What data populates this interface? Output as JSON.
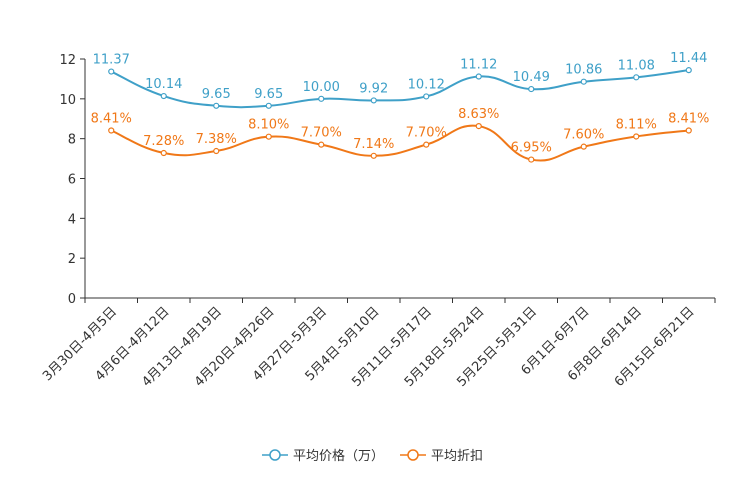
{
  "chart_data": {
    "type": "line",
    "title": "",
    "xlabel": "",
    "ylabel": "",
    "ylim": [
      0,
      12
    ],
    "yticks": [
      0,
      2,
      4,
      6,
      8,
      10,
      12
    ],
    "categories": [
      "3月30日-4月5日",
      "4月6日-4月12日",
      "4月13日-4月19日",
      "4月20日-4月26日",
      "4月27日-5月3日",
      "5月4日-5月10日",
      "5月11日-5月17日",
      "5月18日-5月24日",
      "5月25日-5月31日",
      "6月1日-6月7日",
      "6月8日-6月14日",
      "6月15日-6月21日"
    ],
    "series": [
      {
        "name": "平均价格（万）",
        "color": "#3fa0c8",
        "values": [
          11.37,
          10.14,
          9.65,
          9.65,
          10.0,
          9.92,
          10.12,
          11.12,
          10.49,
          10.86,
          11.08,
          11.44
        ],
        "labels": [
          "11.37",
          "10.14",
          "9.65",
          "9.65",
          "10.00",
          "9.92",
          "10.12",
          "11.12",
          "10.49",
          "10.86",
          "11.08",
          "11.44"
        ]
      },
      {
        "name": "平均折扣",
        "color": "#f07818",
        "values": [
          8.41,
          7.28,
          7.38,
          8.1,
          7.7,
          7.14,
          7.7,
          8.63,
          6.95,
          7.6,
          8.11,
          8.41
        ],
        "labels": [
          "8.41%",
          "7.28%",
          "7.38%",
          "8.10%",
          "7.70%",
          "7.14%",
          "7.70%",
          "8.63%",
          "6.95%",
          "7.60%",
          "8.11%",
          "8.41%"
        ]
      }
    ],
    "grid": false,
    "legend_position": "bottom-center"
  }
}
